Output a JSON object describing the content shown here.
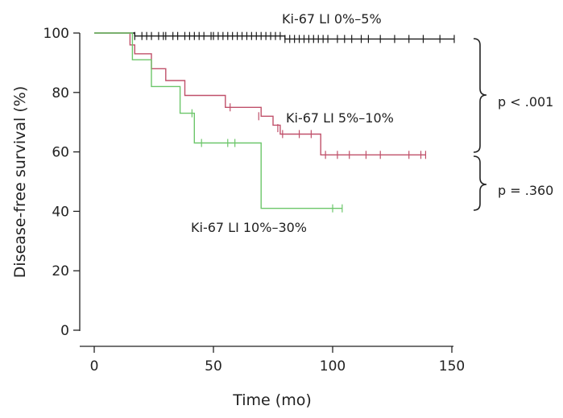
{
  "chart_data": {
    "type": "line",
    "subtype": "kaplan-meier",
    "xlabel": "Time (mo)",
    "ylabel": "Disease-free survival (%)",
    "xlim": [
      0,
      150
    ],
    "ylim": [
      0,
      100
    ],
    "xticks": [
      0,
      50,
      100,
      150
    ],
    "yticks": [
      0,
      20,
      40,
      60,
      80,
      100
    ],
    "grid": false,
    "series": [
      {
        "name": "Ki-67 LI 0%–5%",
        "color": "#1a1a1a",
        "steps": [
          [
            0,
            100
          ],
          [
            17,
            100
          ],
          [
            17,
            99
          ],
          [
            80,
            99
          ],
          [
            80,
            98
          ],
          [
            151,
            98
          ]
        ],
        "censored": [
          [
            17,
            99
          ],
          [
            20,
            99
          ],
          [
            22,
            99
          ],
          [
            24,
            99
          ],
          [
            27,
            99
          ],
          [
            29,
            99
          ],
          [
            30,
            99
          ],
          [
            33,
            99
          ],
          [
            35,
            99
          ],
          [
            38,
            99
          ],
          [
            40,
            99
          ],
          [
            42,
            99
          ],
          [
            44,
            99
          ],
          [
            46,
            99
          ],
          [
            49,
            99
          ],
          [
            50,
            99
          ],
          [
            52,
            99
          ],
          [
            54,
            99
          ],
          [
            56,
            99
          ],
          [
            58,
            99
          ],
          [
            60,
            99
          ],
          [
            62,
            99
          ],
          [
            64,
            99
          ],
          [
            66,
            99
          ],
          [
            68,
            99
          ],
          [
            70,
            99
          ],
          [
            72,
            99
          ],
          [
            74,
            99
          ],
          [
            76,
            99
          ],
          [
            78,
            99
          ],
          [
            80,
            98
          ],
          [
            82,
            98
          ],
          [
            84,
            98
          ],
          [
            86,
            98
          ],
          [
            88,
            98
          ],
          [
            90,
            98
          ],
          [
            92,
            98
          ],
          [
            94,
            98
          ],
          [
            96,
            98
          ],
          [
            98,
            98
          ],
          [
            102,
            98
          ],
          [
            105,
            98
          ],
          [
            108,
            98
          ],
          [
            112,
            98
          ],
          [
            115,
            98
          ],
          [
            120,
            98
          ],
          [
            126,
            98
          ],
          [
            132,
            98
          ],
          [
            138,
            98
          ],
          [
            145,
            98
          ],
          [
            151,
            98
          ]
        ]
      },
      {
        "name": "Ki-67 LI 5%–10%",
        "color": "#c0506a",
        "steps": [
          [
            0,
            100
          ],
          [
            15,
            100
          ],
          [
            15,
            96
          ],
          [
            17,
            96
          ],
          [
            17,
            93
          ],
          [
            24,
            93
          ],
          [
            24,
            88
          ],
          [
            30,
            88
          ],
          [
            30,
            84
          ],
          [
            38,
            84
          ],
          [
            38,
            79
          ],
          [
            55,
            79
          ],
          [
            55,
            75
          ],
          [
            70,
            75
          ],
          [
            70,
            72
          ],
          [
            75,
            72
          ],
          [
            75,
            69
          ],
          [
            78,
            69
          ],
          [
            78,
            66
          ],
          [
            95,
            66
          ],
          [
            95,
            59
          ],
          [
            139,
            59
          ]
        ],
        "censored": [
          [
            57,
            75
          ],
          [
            69,
            72
          ],
          [
            77,
            68
          ],
          [
            79,
            66
          ],
          [
            86,
            66
          ],
          [
            91,
            66
          ],
          [
            97,
            59
          ],
          [
            102,
            59
          ],
          [
            107,
            59
          ],
          [
            114,
            59
          ],
          [
            120,
            59
          ],
          [
            132,
            59
          ],
          [
            137,
            59
          ],
          [
            139,
            59
          ]
        ]
      },
      {
        "name": "Ki-67 LI 10%–30%",
        "color": "#6cc66a",
        "steps": [
          [
            0,
            100
          ],
          [
            16,
            100
          ],
          [
            16,
            91
          ],
          [
            24,
            91
          ],
          [
            24,
            82
          ],
          [
            36,
            82
          ],
          [
            36,
            73
          ],
          [
            42,
            73
          ],
          [
            42,
            63
          ],
          [
            70,
            63
          ],
          [
            70,
            41
          ],
          [
            104,
            41
          ]
        ],
        "censored": [
          [
            41,
            73
          ],
          [
            45,
            63
          ],
          [
            56,
            63
          ],
          [
            59,
            63
          ],
          [
            100,
            41
          ],
          [
            104,
            41
          ]
        ]
      }
    ],
    "annotations": {
      "series_labels": [
        "Ki-67 LI 0%–5%",
        "Ki-67 LI 5%–10%",
        "Ki-67 LI 10%–30%"
      ],
      "p_values": [
        "p < .001",
        "p = .360"
      ]
    }
  }
}
